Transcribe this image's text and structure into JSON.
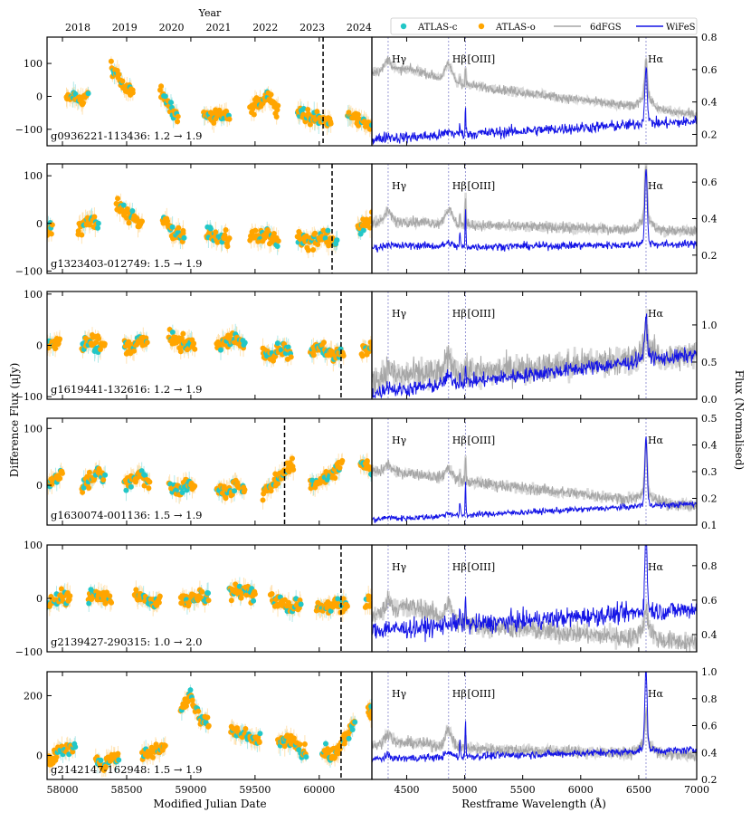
{
  "figure": {
    "top_axis_title": "Year",
    "years": [
      "2018",
      "2019",
      "2020",
      "2021",
      "2022",
      "2023",
      "2024"
    ],
    "year_mjd": [
      58119.5,
      58484.5,
      58849.5,
      59215.5,
      59580.5,
      59945.5,
      60310.5
    ],
    "left_ylabel": "Difference Flux (μJy)",
    "right_ylabel": "Flux (Normalised)",
    "left_xlabel": "Modified Julian Date",
    "right_xlabel": "Restframe Wavelength (Å)",
    "legend": [
      {
        "label": "ATLAS-c",
        "kind": "dot",
        "color": "#22c7c7"
      },
      {
        "label": "ATLAS-o",
        "kind": "dot",
        "color": "#ffa500"
      },
      {
        "label": "6dFGS",
        "kind": "line",
        "color": "#a6a6a6"
      },
      {
        "label": "WiFeS",
        "kind": "line",
        "color": "#1414e6"
      }
    ],
    "line_labels": [
      {
        "text": "Hγ",
        "wl": 4340
      },
      {
        "text": "Hβ",
        "wl": 4861
      },
      {
        "text": "[OIII]",
        "wl": 5007
      },
      {
        "text": "Hα",
        "wl": 6563
      }
    ]
  },
  "chart_data": {
    "type": "scatter",
    "lightcurve_xlim": [
      57880,
      60410
    ],
    "lightcurve_xticks": [
      58000,
      58500,
      59000,
      59500,
      60000
    ],
    "spectrum_xlim": [
      4200,
      7000
    ],
    "spectrum_xticks": [
      4500,
      5000,
      5500,
      6000,
      6500,
      7000
    ],
    "panels": [
      {
        "name": "g0936221-113436",
        "change": "1.2 → 1.9",
        "lc_ylim": [
          -150,
          180
        ],
        "lc_yticks": [
          -100,
          0,
          100
        ],
        "spec_mjd": 60030,
        "spec_ylim": [
          0.13,
          0.8
        ],
        "spec_yticks": [
          0.2,
          0.4,
          0.6,
          0.8
        ],
        "lc_segments": [
          {
            "start": 58030,
            "end": 58200,
            "levels": [
              -10,
              0,
              -20,
              10
            ]
          },
          {
            "start": 58380,
            "end": 58550,
            "levels": [
              90,
              60,
              20,
              10
            ]
          },
          {
            "start": 58760,
            "end": 58900,
            "levels": [
              10,
              0,
              -40,
              -70
            ]
          },
          {
            "start": 59100,
            "end": 59300,
            "levels": [
              -60,
              -70,
              -50,
              -60
            ]
          },
          {
            "start": 59460,
            "end": 59680,
            "levels": [
              -40,
              -20,
              0,
              -50
            ]
          },
          {
            "start": 59830,
            "end": 60090,
            "levels": [
              -50,
              -60,
              -70,
              -80
            ]
          },
          {
            "start": 60220,
            "end": 60410,
            "levels": [
              -60,
              -70,
              -80,
              -90
            ]
          }
        ],
        "spec_6df": {
          "start": 0.58,
          "end": 0.32,
          "bump": 0.05,
          "broad": 0.1,
          "ha": 0.22,
          "noise": 0.02
        },
        "spec_wifes": {
          "start": 0.17,
          "end": 0.28,
          "bump": 0.0,
          "broad": 0.02,
          "ha": 0.35,
          "noise": 0.025
        }
      },
      {
        "name": "g1323403-012749",
        "change": "1.5 → 1.9",
        "lc_ylim": [
          -105,
          125
        ],
        "lc_yticks": [
          -100,
          0,
          100
        ],
        "spec_mjd": 60100,
        "spec_ylim": [
          0.1,
          0.7
        ],
        "spec_yticks": [
          0.2,
          0.4,
          0.6
        ],
        "lc_segments": [
          {
            "start": 57880,
            "end": 57920,
            "levels": [
              -10,
              -5
            ]
          },
          {
            "start": 58120,
            "end": 58280,
            "levels": [
              -10,
              0,
              10,
              0
            ]
          },
          {
            "start": 58420,
            "end": 58620,
            "levels": [
              40,
              25,
              10,
              0
            ]
          },
          {
            "start": 58780,
            "end": 58950,
            "levels": [
              10,
              -10,
              -20,
              -30
            ]
          },
          {
            "start": 59120,
            "end": 59300,
            "levels": [
              -20,
              -25,
              -30,
              -35
            ]
          },
          {
            "start": 59460,
            "end": 59680,
            "levels": [
              -20,
              -30,
              -25,
              -40
            ]
          },
          {
            "start": 59830,
            "end": 60140,
            "levels": [
              -30,
              -40,
              -30,
              -40
            ]
          },
          {
            "start": 60300,
            "end": 60410,
            "levels": [
              -10,
              0,
              10
            ]
          }
        ],
        "spec_6df": {
          "start": 0.38,
          "end": 0.33,
          "bump": 0.01,
          "broad": 0.08,
          "ha": 0.3,
          "noise": 0.02
        },
        "spec_wifes": {
          "start": 0.24,
          "end": 0.26,
          "bump": 0.01,
          "broad": 0.02,
          "ha": 0.4,
          "noise": 0.015
        }
      },
      {
        "name": "g1619441-132616",
        "change": "1.2 → 1.9",
        "lc_ylim": [
          -105,
          105
        ],
        "lc_yticks": [
          -100,
          0,
          100
        ],
        "spec_mjd": 60170,
        "spec_ylim": [
          0.0,
          1.45
        ],
        "spec_yticks": [
          0.0,
          0.5,
          1.0
        ],
        "lc_segments": [
          {
            "start": 57880,
            "end": 57980,
            "levels": [
              0,
              5
            ]
          },
          {
            "start": 58150,
            "end": 58330,
            "levels": [
              0,
              10,
              0,
              5
            ]
          },
          {
            "start": 58480,
            "end": 58660,
            "levels": [
              0,
              -10,
              10,
              0
            ]
          },
          {
            "start": 58830,
            "end": 59030,
            "levels": [
              20,
              10,
              0,
              0
            ]
          },
          {
            "start": 59200,
            "end": 59420,
            "levels": [
              0,
              10,
              15,
              0
            ]
          },
          {
            "start": 59560,
            "end": 59780,
            "levels": [
              -10,
              -20,
              -10,
              -15
            ]
          },
          {
            "start": 59930,
            "end": 60190,
            "levels": [
              -10,
              -5,
              -20,
              -10
            ]
          },
          {
            "start": 60330,
            "end": 60410,
            "levels": [
              -10,
              0
            ]
          }
        ],
        "spec_6df": {
          "start": 0.25,
          "end": 0.6,
          "bump": 0.04,
          "broad": 0.2,
          "ha": 0.35,
          "noise": 0.14
        },
        "spec_wifes": {
          "start": 0.08,
          "end": 0.6,
          "bump": 0.0,
          "broad": 0.1,
          "ha": 0.5,
          "noise": 0.07
        }
      },
      {
        "name": "g1630074-001136",
        "change": "1.5 → 1.9",
        "lc_ylim": [
          -70,
          118
        ],
        "lc_yticks": [
          0,
          100
        ],
        "spec_mjd": 59730,
        "spec_ylim": [
          0.1,
          0.5
        ],
        "spec_yticks": [
          0.1,
          0.2,
          0.3,
          0.4,
          0.5
        ],
        "lc_segments": [
          {
            "start": 57880,
            "end": 58000,
            "levels": [
              0,
              20
            ]
          },
          {
            "start": 58150,
            "end": 58330,
            "levels": [
              -10,
              10,
              25,
              15
            ]
          },
          {
            "start": 58480,
            "end": 58680,
            "levels": [
              0,
              10,
              20,
              0
            ]
          },
          {
            "start": 58830,
            "end": 59030,
            "levels": [
              0,
              -10,
              0,
              -5
            ]
          },
          {
            "start": 59200,
            "end": 59420,
            "levels": [
              -5,
              -10,
              0,
              -10
            ]
          },
          {
            "start": 59560,
            "end": 59800,
            "levels": [
              -10,
              0,
              20,
              40
            ]
          },
          {
            "start": 59930,
            "end": 60180,
            "levels": [
              0,
              10,
              20,
              40
            ]
          },
          {
            "start": 60320,
            "end": 60410,
            "levels": [
              40,
              30
            ]
          }
        ],
        "spec_6df": {
          "start": 0.3,
          "end": 0.17,
          "bump": 0.01,
          "broad": 0.04,
          "ha": 0.18,
          "noise": 0.015
        },
        "spec_wifes": {
          "start": 0.12,
          "end": 0.18,
          "bump": 0.0,
          "broad": 0.01,
          "ha": 0.25,
          "noise": 0.008
        }
      },
      {
        "name": "g2139427-290315",
        "change": "1.0 → 2.0",
        "lc_ylim": [
          -100,
          100
        ],
        "lc_yticks": [
          -100,
          0,
          100
        ],
        "spec_mjd": 60170,
        "spec_ylim": [
          0.3,
          0.92
        ],
        "spec_yticks": [
          0.4,
          0.6,
          0.8
        ],
        "lc_segments": [
          {
            "start": 57880,
            "end": 58060,
            "levels": [
              -10,
              0,
              5,
              -5
            ]
          },
          {
            "start": 58200,
            "end": 58380,
            "levels": [
              0,
              10,
              5,
              0
            ]
          },
          {
            "start": 58560,
            "end": 58760,
            "levels": [
              10,
              0,
              -10,
              0
            ]
          },
          {
            "start": 58920,
            "end": 59140,
            "levels": [
              0,
              -5,
              5,
              0
            ]
          },
          {
            "start": 59300,
            "end": 59500,
            "levels": [
              10,
              15,
              10,
              5
            ]
          },
          {
            "start": 59620,
            "end": 59860,
            "levels": [
              0,
              -10,
              -15,
              -10
            ]
          },
          {
            "start": 59980,
            "end": 60220,
            "levels": [
              -15,
              -20,
              -10,
              -10
            ]
          },
          {
            "start": 60360,
            "end": 60410,
            "levels": [
              -10
            ]
          }
        ],
        "spec_6df": {
          "start": 0.5,
          "end": 0.35,
          "bump": 0.08,
          "broad": 0.1,
          "ha": 0.12,
          "noise": 0.04
        },
        "spec_wifes": {
          "start": 0.42,
          "end": 0.55,
          "bump": 0.0,
          "broad": 0.02,
          "ha": 0.45,
          "noise": 0.04
        }
      },
      {
        "name": "g2142147-162948",
        "change": "1.5 → 1.9",
        "lc_ylim": [
          -80,
          280
        ],
        "lc_yticks": [
          0,
          200
        ],
        "spec_mjd": 60170,
        "spec_ylim": [
          0.2,
          1.0
        ],
        "spec_yticks": [
          0.2,
          0.4,
          0.6,
          0.8,
          1.0
        ],
        "lc_segments": [
          {
            "start": 57880,
            "end": 58100,
            "levels": [
              -20,
              0,
              20,
              30
            ]
          },
          {
            "start": 58260,
            "end": 58440,
            "levels": [
              -20,
              -30,
              -10,
              0
            ]
          },
          {
            "start": 58620,
            "end": 58800,
            "levels": [
              0,
              10,
              20,
              40
            ]
          },
          {
            "start": 58920,
            "end": 59140,
            "levels": [
              150,
              200,
              130,
              110
            ]
          },
          {
            "start": 59310,
            "end": 59540,
            "levels": [
              100,
              70,
              60,
              50
            ]
          },
          {
            "start": 59680,
            "end": 59900,
            "levels": [
              40,
              60,
              30,
              10
            ]
          },
          {
            "start": 60020,
            "end": 60280,
            "levels": [
              10,
              0,
              50,
              120
            ]
          },
          {
            "start": 60380,
            "end": 60410,
            "levels": [
              150
            ]
          }
        ],
        "spec_6df": {
          "start": 0.45,
          "end": 0.38,
          "bump": 0.03,
          "broad": 0.12,
          "ha": 0.2,
          "noise": 0.03
        },
        "spec_wifes": {
          "start": 0.35,
          "end": 0.42,
          "bump": 0.0,
          "broad": 0.03,
          "ha": 0.6,
          "noise": 0.02
        }
      }
    ]
  }
}
